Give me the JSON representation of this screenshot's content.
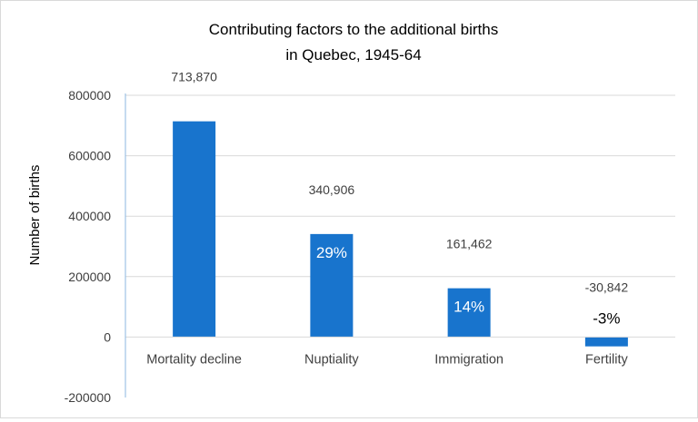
{
  "chart_data": {
    "type": "bar",
    "title": "Contributing factors to the additional births",
    "subtitle": "in Quebec, 1945-64",
    "xlabel": "",
    "ylabel": "Number  of births",
    "ylim": [
      -200000,
      800000
    ],
    "yticks": [
      "800000",
      "600000",
      "400000",
      "200000",
      "0",
      "-200000"
    ],
    "ytick_values": [
      800000,
      600000,
      400000,
      200000,
      0,
      -200000
    ],
    "grid": true,
    "categories": [
      "Mortality decline",
      "Nuptiality",
      "Immigration",
      "Fertility"
    ],
    "values": [
      713870,
      340906,
      161462,
      -30842
    ],
    "value_labels": [
      "713,870",
      "340,906",
      "161,462",
      "-30,842"
    ],
    "share_labels": [
      "",
      "29%",
      "14%",
      "-3%"
    ],
    "bar_color": "#1874cd",
    "grid_color": "#d9d9d9",
    "axis_color": "#8bb7e0"
  }
}
